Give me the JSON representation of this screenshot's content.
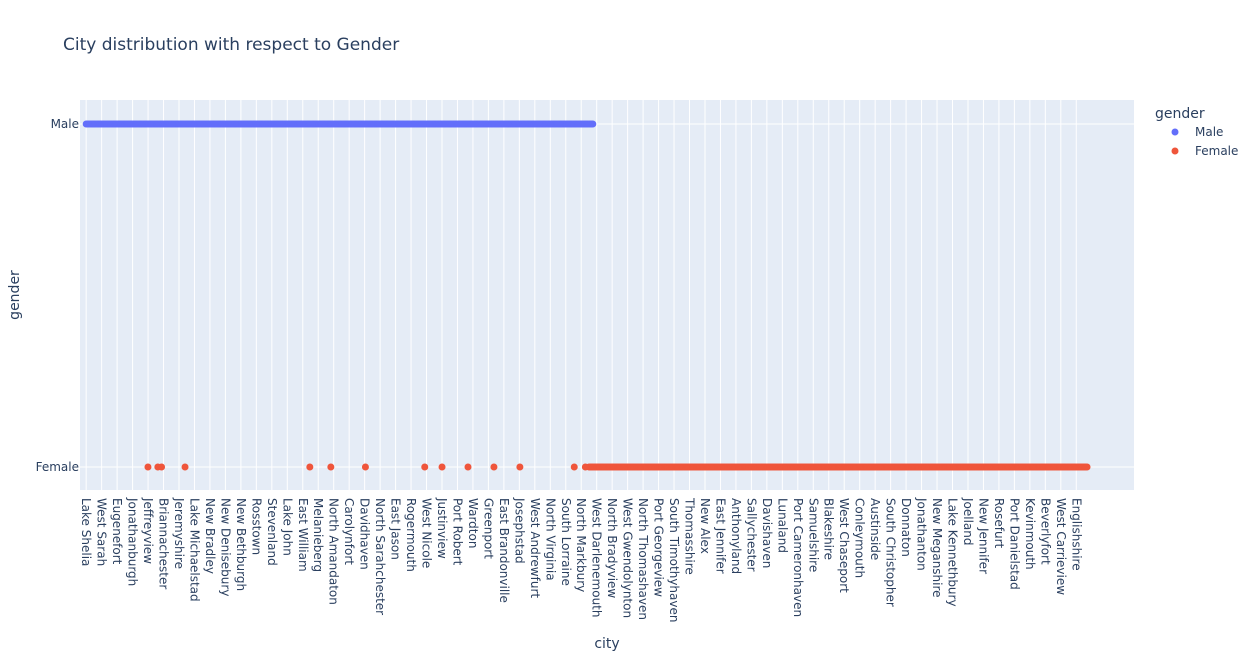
{
  "chart_data": {
    "type": "scatter",
    "title": "City distribution with respect to Gender",
    "xlabel": "city",
    "ylabel": "gender",
    "legend": {
      "title": "gender",
      "position": "top-right"
    },
    "grid": true,
    "background_color": "#e5ecf6",
    "categories": [
      "Male",
      "Female"
    ],
    "x_tick_labels": [
      "Lake Shelia",
      "West Sarah",
      "Eugenefort",
      "Jonathanburgh",
      "Jeffreyview",
      "Briannachester",
      "Jeremyshire",
      "Lake Michaelstad",
      "New Bradley",
      "New Denisebury",
      "New Bethburgh",
      "Rosstown",
      "Stevenland",
      "Lake John",
      "East William",
      "Melanieberg",
      "North Amandaton",
      "Carolynfort",
      "Davidhaven",
      "North Sarahchester",
      "East Jason",
      "Rogermouth",
      "West Nicole",
      "Justinview",
      "Port Robert",
      "Wardton",
      "Greenport",
      "East Brandonville",
      "Josephstad",
      "West Andrewfurt",
      "North Virginia",
      "South Lorraine",
      "North Markbury",
      "West Darlenemouth",
      "North Bradyview",
      "West Gwendolynton",
      "North Thomashaven",
      "Port Georgeview",
      "South Timothyhaven",
      "Thomasshire",
      "New Alex",
      "East Jennifer",
      "Anthonyland",
      "Sallychester",
      "Davishaven",
      "Lunaland",
      "Port Cameronhaven",
      "Samuelshire",
      "Blakeshire",
      "West Chaseport",
      "Conleymouth",
      "Austinside",
      "South Christopher",
      "Donnaton",
      "Jonathanton",
      "New Meganshire",
      "Lake Kennethbury",
      "Joelland",
      "New Jennifer",
      "Rosefurt",
      "Port Danielstad",
      "Kevinmouth",
      "Beverlyfort",
      "West Carrieview",
      "Englishshire"
    ],
    "series": [
      {
        "name": "Male",
        "color": "#636efa",
        "y": "Male",
        "x_range": [
          0,
          410
        ],
        "points": []
      },
      {
        "name": "Female",
        "color": "#ef553b",
        "y": "Female",
        "points": [
          50,
          58,
          61,
          80,
          181,
          198,
          226,
          274,
          288,
          309,
          330,
          351,
          395,
          404
        ],
        "x_range": [
          407,
          810
        ]
      }
    ],
    "x_index_range": [
      -5,
      848
    ],
    "x_tick_index_step": 12.52
  }
}
